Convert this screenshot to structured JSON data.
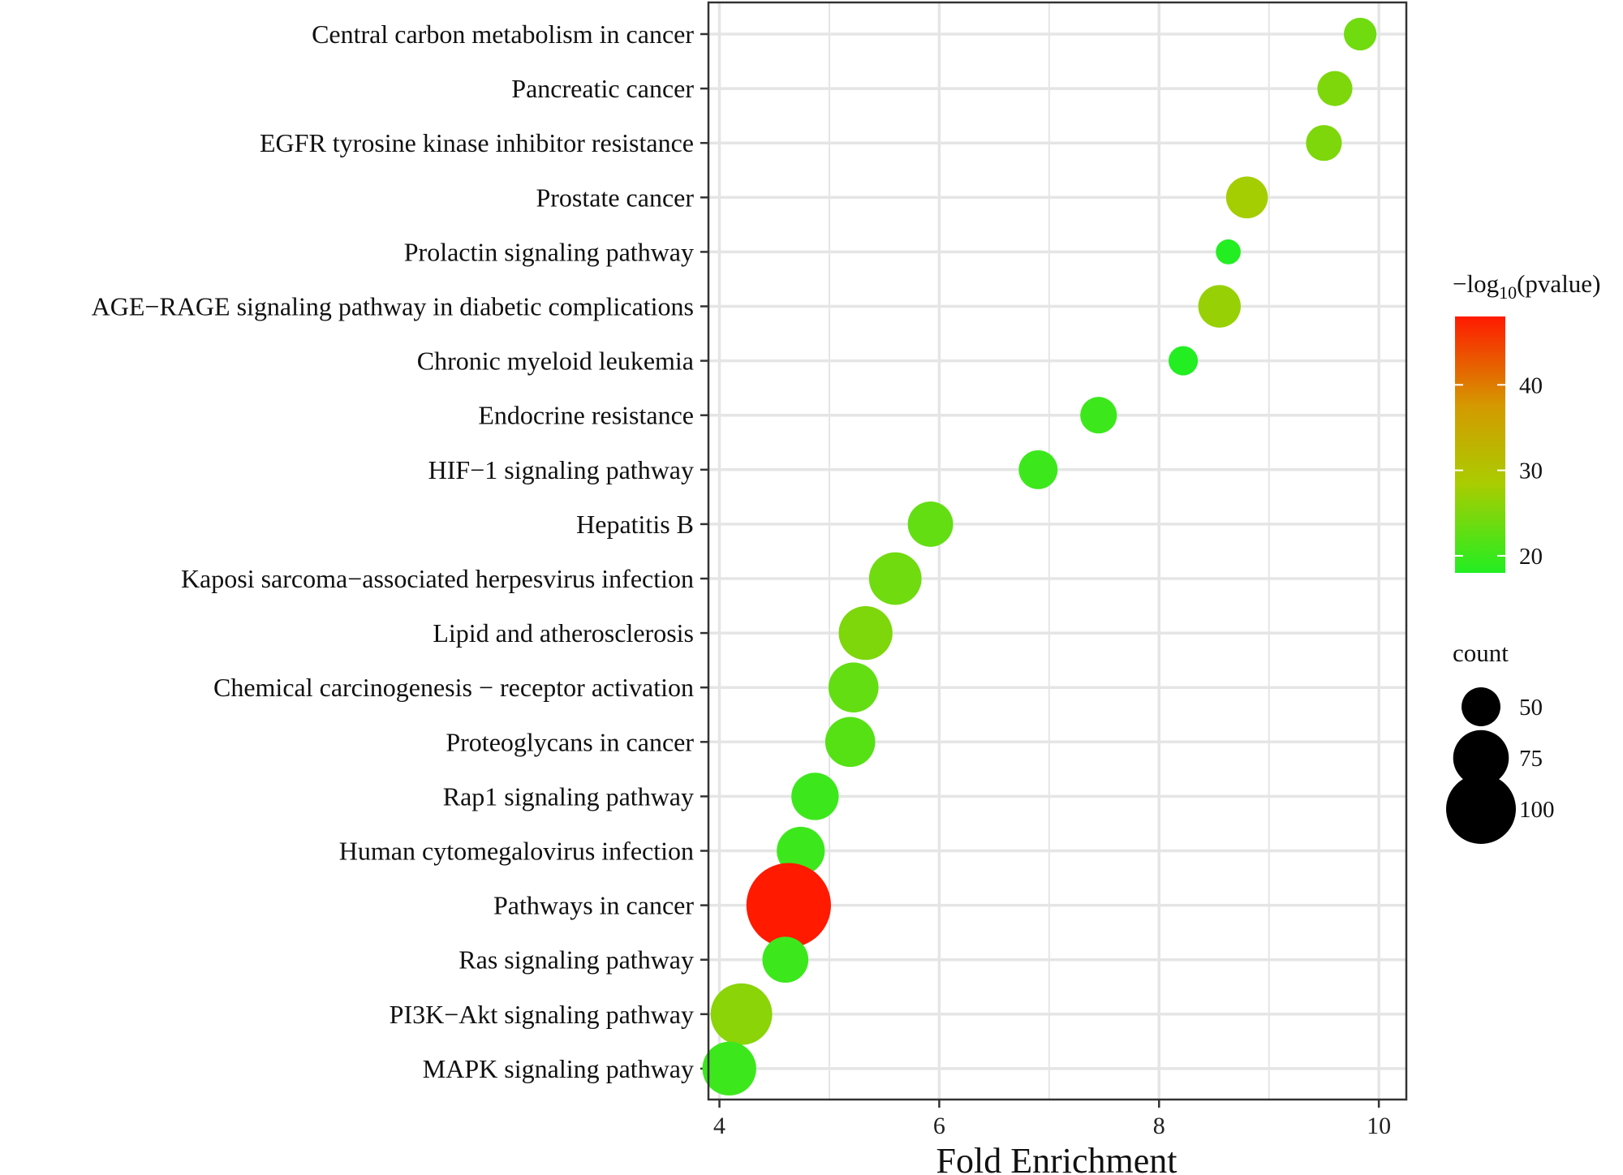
{
  "chart_data": {
    "type": "scatter",
    "xlabel": "Fold Enrichment",
    "ylabel": "",
    "xlim": [
      3.9,
      10.25
    ],
    "x_ticks": [
      4,
      6,
      8,
      10
    ],
    "categories": [
      "Central carbon metabolism in cancer",
      "Pancreatic cancer",
      "EGFR tyrosine kinase inhibitor resistance",
      "Prostate cancer",
      "Prolactin signaling pathway",
      "AGE−RAGE signaling pathway in diabetic complications",
      "Chronic myeloid leukemia",
      "Endocrine resistance",
      "HIF−1 signaling pathway",
      "Hepatitis B",
      "Kaposi sarcoma−associated herpesvirus infection",
      "Lipid and atherosclerosis",
      "Chemical carcinogenesis − receptor activation",
      "Proteoglycans in cancer",
      "Rap1 signaling pathway",
      "Human cytomegalovirus infection",
      "Pathways in cancer",
      "Ras signaling pathway",
      "PI3K−Akt signaling pathway",
      "MAPK signaling pathway"
    ],
    "points": [
      {
        "fold_enrichment": 9.83,
        "neg_log10_pvalue": 24,
        "count": 42
      },
      {
        "fold_enrichment": 9.6,
        "neg_log10_pvalue": 25,
        "count": 45
      },
      {
        "fold_enrichment": 9.5,
        "neg_log10_pvalue": 25,
        "count": 46
      },
      {
        "fold_enrichment": 8.8,
        "neg_log10_pvalue": 28,
        "count": 54
      },
      {
        "fold_enrichment": 8.63,
        "neg_log10_pvalue": 18,
        "count": 33
      },
      {
        "fold_enrichment": 8.55,
        "neg_log10_pvalue": 27,
        "count": 55
      },
      {
        "fold_enrichment": 8.22,
        "neg_log10_pvalue": 18,
        "count": 38
      },
      {
        "fold_enrichment": 7.45,
        "neg_log10_pvalue": 20,
        "count": 47
      },
      {
        "fold_enrichment": 6.9,
        "neg_log10_pvalue": 20,
        "count": 50
      },
      {
        "fold_enrichment": 5.92,
        "neg_log10_pvalue": 23,
        "count": 59
      },
      {
        "fold_enrichment": 5.6,
        "neg_log10_pvalue": 24,
        "count": 70
      },
      {
        "fold_enrichment": 5.33,
        "neg_log10_pvalue": 25,
        "count": 72
      },
      {
        "fold_enrichment": 5.22,
        "neg_log10_pvalue": 23,
        "count": 66
      },
      {
        "fold_enrichment": 5.19,
        "neg_log10_pvalue": 22,
        "count": 66
      },
      {
        "fold_enrichment": 4.87,
        "neg_log10_pvalue": 20,
        "count": 62
      },
      {
        "fold_enrichment": 4.74,
        "neg_log10_pvalue": 20,
        "count": 63
      },
      {
        "fold_enrichment": 4.63,
        "neg_log10_pvalue": 48,
        "count": 130
      },
      {
        "fold_enrichment": 4.6,
        "neg_log10_pvalue": 20,
        "count": 60
      },
      {
        "fold_enrichment": 4.2,
        "neg_log10_pvalue": 26,
        "count": 85
      },
      {
        "fold_enrichment": 4.09,
        "neg_log10_pvalue": 20,
        "count": 72
      }
    ],
    "color_legend": {
      "title_prefix": "−log",
      "title_subscript": "10",
      "title_suffix": "(pvalue)",
      "range": [
        18,
        48
      ],
      "ticks": [
        20,
        30,
        40
      ],
      "colors": {
        "low": "#22ee22",
        "mid": "#aacc00",
        "high": "#ff1a00"
      }
    },
    "size_legend": {
      "title": "count",
      "range": [
        30,
        130
      ],
      "values": [
        50,
        75,
        100
      ]
    },
    "colors": {
      "panel_border": "#333333",
      "grid": "#e5e5e5",
      "tick": "#333333"
    }
  }
}
